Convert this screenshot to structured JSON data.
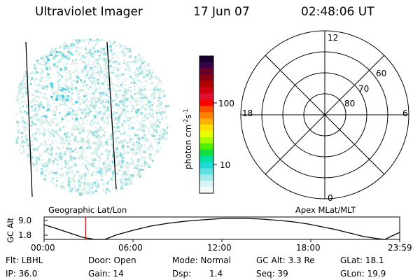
{
  "header": {
    "instrument": "Ultraviolet Imager",
    "date": "17 Jun 07",
    "time": "02:48:06 UT"
  },
  "colorbar": {
    "label": "photon cm",
    "label_sup1": "-2",
    "label_mid": "s",
    "label_sup2": "-1",
    "ticks": [
      "100",
      "10"
    ],
    "colors": [
      "#1a0030",
      "#3a0048",
      "#6a0028",
      "#8a0010",
      "#b00000",
      "#d00010",
      "#e01030",
      "#ff0000",
      "#ff5000",
      "#ff8000",
      "#ffb000",
      "#ffe000",
      "#e8ff00",
      "#a8ff00",
      "#50f000",
      "#10e040",
      "#00e0a0",
      "#20d8d8",
      "#60e0e0",
      "#a0ecec",
      "#d8f4f4",
      "#f4fcfc"
    ]
  },
  "polar_plot": {
    "mlt_labels": {
      "top": "12",
      "left": "18",
      "right": "6",
      "bottom": "0"
    },
    "lat_labels": [
      "60",
      "70",
      "80"
    ]
  },
  "timeline": {
    "y_axis_label": "GC Alt",
    "y_ticks": [
      "9.0",
      "1.8"
    ],
    "left_title": "Geographic Lat/Lon",
    "right_title": "Apex MLat/MLT",
    "x_ticks": [
      "00:00",
      "06:00",
      "12:00",
      "18:00",
      "23:59"
    ],
    "current_time_hours": 2.8
  },
  "info": {
    "flt": "Flt: LBHL",
    "ip": "IP: 36.0",
    "door": "Door: Open",
    "gain": "Gain: 14",
    "mode": "Mode: Normal",
    "dsp_label": "Dsp:",
    "dsp_value": "1.4",
    "gc_alt": "GC Alt: 3.3 Re",
    "seq": "Seq: 39",
    "glat": "GLat: 18.1",
    "glon": "GLon: 19.9"
  }
}
